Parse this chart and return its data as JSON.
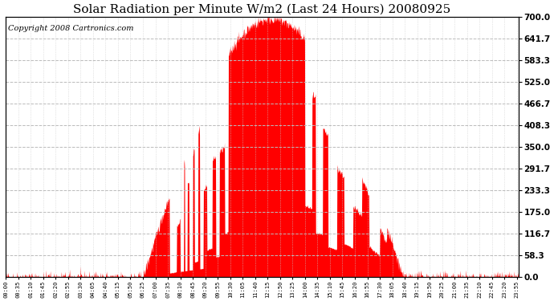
{
  "title": "Solar Radiation per Minute W/m2 (Last 24 Hours) 20080925",
  "copyright": "Copyright 2008 Cartronics.com",
  "y_min": 0.0,
  "y_max": 700.0,
  "y_ticks": [
    0.0,
    58.3,
    116.7,
    175.0,
    233.3,
    291.7,
    350.0,
    408.3,
    466.7,
    525.0,
    583.3,
    641.7,
    700.0
  ],
  "fill_color": "#FF0000",
  "dashed_line_color": "#FF0000",
  "grid_color_h": "#BBBBBB",
  "grid_color_v": "#CCCCCC",
  "background_color": "#FFFFFF",
  "title_fontsize": 11,
  "copyright_fontsize": 7,
  "num_minutes": 1440,
  "tick_interval": 35
}
